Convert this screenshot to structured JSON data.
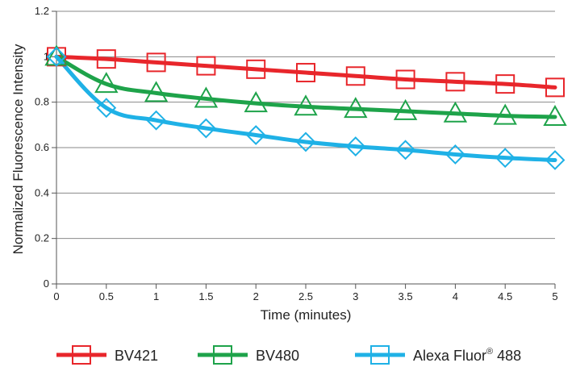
{
  "chart_data": {
    "type": "line",
    "title": "",
    "xlabel": "Time (minutes)",
    "ylabel": "Normalized Fluorescence Intensity",
    "xlim": [
      0,
      5
    ],
    "ylim": [
      0,
      1.2
    ],
    "x_ticks": [
      "0",
      "0.5",
      "1",
      "1.5",
      "2",
      "2.5",
      "3",
      "3.5",
      "4",
      "4.5",
      "5"
    ],
    "y_ticks": [
      "0",
      "0.2",
      "0.4",
      "0.6",
      "0.8",
      "1",
      "1.2"
    ],
    "grid": "horizontal",
    "legend_position": "bottom",
    "x": [
      0,
      0.5,
      1,
      1.5,
      2,
      2.5,
      3,
      3.5,
      4,
      4.5,
      5
    ],
    "series": [
      {
        "name": "BV421",
        "marker": "square",
        "color": "#e8262b",
        "values": [
          1.0,
          0.99,
          0.975,
          0.96,
          0.945,
          0.93,
          0.915,
          0.9,
          0.89,
          0.88,
          0.865
        ]
      },
      {
        "name": "BV480",
        "marker": "triangle",
        "color": "#1ea34a",
        "values": [
          1.0,
          0.88,
          0.84,
          0.815,
          0.795,
          0.78,
          0.77,
          0.76,
          0.75,
          0.74,
          0.735
        ]
      },
      {
        "name": "Alexa Fluor",
        "name_superscript": "®",
        "name_suffix": " 488",
        "marker": "diamond",
        "color": "#1fb1e6",
        "values": [
          1.0,
          0.775,
          0.72,
          0.685,
          0.655,
          0.625,
          0.605,
          0.59,
          0.57,
          0.555,
          0.545
        ]
      }
    ]
  }
}
